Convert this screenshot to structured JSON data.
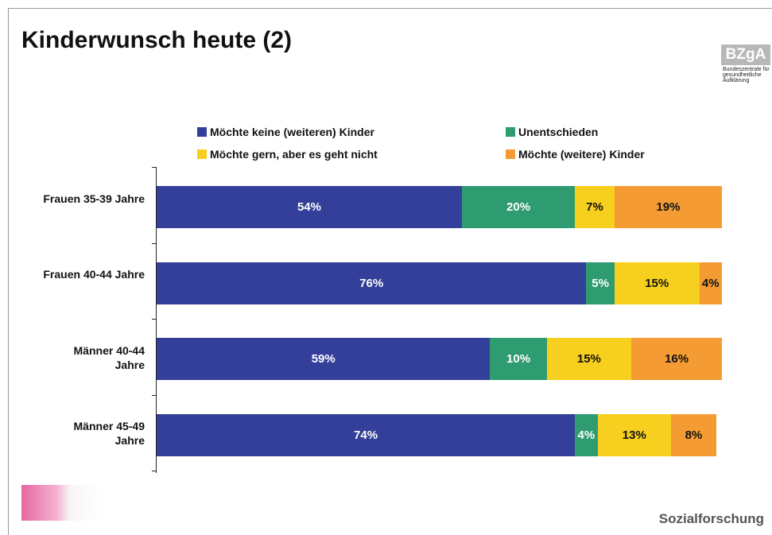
{
  "chart_data": {
    "type": "stacked-bar-horizontal",
    "title": "Kinderwunsch heute (2)",
    "logo": "BZgA",
    "logo_subtitle": "Bundeszentrale für gesundheitliche Aufklärung",
    "footer": "Sozialforschung",
    "categories": [
      "Frauen 35-39 Jahre",
      "Frauen 40-44 Jahre",
      "Männer 40-44 Jahre",
      "Männer 45-49 Jahre"
    ],
    "xlim": [
      0,
      100
    ],
    "series": [
      {
        "name": "Möchte keine (weiteren) Kinder",
        "color": "#333f99",
        "values": [
          54,
          76,
          59,
          74
        ],
        "value_labels": [
          "54%",
          "76%",
          "59%",
          "74%"
        ]
      },
      {
        "name": "Unentschieden",
        "color": "#2e9b71",
        "values": [
          20,
          5,
          10,
          4
        ],
        "value_labels": [
          "20%",
          "5%",
          "10%",
          "4%"
        ]
      },
      {
        "name": "Möchte gern, aber es geht nicht",
        "color": "#f7cf1e",
        "values": [
          7,
          15,
          15,
          13
        ],
        "value_labels": [
          "7%",
          "15%",
          "15%",
          "13%"
        ]
      },
      {
        "name": "Möchte (weitere) Kinder",
        "color": "#f49b33",
        "values": [
          19,
          4,
          16,
          8
        ],
        "value_labels": [
          "19%",
          "4%",
          "16%",
          "8%"
        ]
      }
    ]
  }
}
